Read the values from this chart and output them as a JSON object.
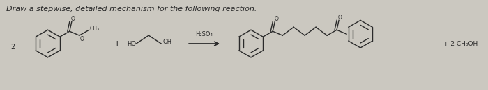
{
  "title": "Draw a stepwise, detailed mechanism for the following reaction:",
  "bg_color": "#cbc8c0",
  "catalyst": "H₂SO₄",
  "product_label": "+ 2 CH₃OH",
  "dark": "#2a2a2a",
  "lw": 1.0,
  "fs": 6.0,
  "title_fs": 8.0
}
